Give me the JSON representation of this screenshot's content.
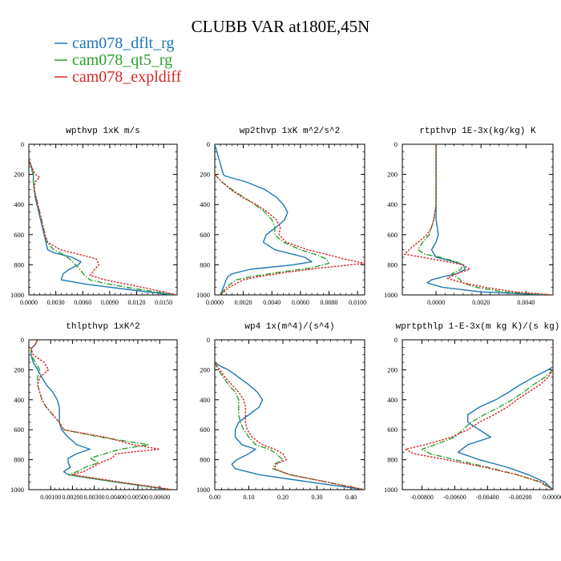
{
  "title": "CLUBB VAR at180E,45N",
  "legend": [
    {
      "label": "cam078_dflt_rg",
      "color": "#1f77b4",
      "dash": "solid"
    },
    {
      "label": "cam078_qt5_rg",
      "color": "#2ca02c",
      "dash": "dashdot"
    },
    {
      "label": "cam078_expldiff",
      "color": "#d62728",
      "dash": "dotted"
    }
  ],
  "chart_data": [
    {
      "type": "line",
      "title": "wpthvp   1xK m/s",
      "xlim": [
        0,
        0.0165
      ],
      "ylim": [
        1000,
        0
      ],
      "y_reversed": true,
      "xticks": [
        0,
        0.003,
        0.006,
        0.009,
        0.012,
        0.015
      ],
      "xticklabels": [
        "0.0000",
        "0.0030",
        "0.0060",
        "0.0090",
        "0.0120",
        "0.0150"
      ],
      "yticks": [
        0,
        200,
        400,
        600,
        800,
        1000
      ],
      "series": [
        {
          "y": [
            100,
            150,
            200,
            250,
            300,
            350,
            400,
            450,
            500,
            550,
            600,
            650,
            700,
            720,
            750,
            780,
            800,
            830,
            860,
            900,
            930,
            960,
            1000
          ],
          "x": [
            0,
            0.0003,
            0.0005,
            0.0005,
            0.0006,
            0.0007,
            0.0009,
            0.0011,
            0.0013,
            0.0015,
            0.0017,
            0.0019,
            0.0021,
            0.0028,
            0.0048,
            0.0058,
            0.0055,
            0.0045,
            0.0038,
            0.0036,
            0.0065,
            0.0105,
            0.016
          ]
        },
        {
          "y": [
            100,
            150,
            200,
            250,
            300,
            350,
            400,
            450,
            500,
            550,
            600,
            650,
            700,
            730,
            760,
            800,
            840,
            870,
            900,
            930,
            960,
            1000
          ],
          "x": [
            0,
            0.0002,
            0.0005,
            0.0005,
            0.0006,
            0.0008,
            0.001,
            0.0012,
            0.0014,
            0.0016,
            0.0018,
            0.002,
            0.0028,
            0.0038,
            0.0045,
            0.0052,
            0.0058,
            0.0062,
            0.0068,
            0.009,
            0.012,
            0.0165
          ]
        },
        {
          "y": [
            100,
            150,
            200,
            220,
            250,
            300,
            350,
            400,
            450,
            500,
            550,
            600,
            650,
            700,
            730,
            760,
            800,
            840,
            870,
            900,
            930,
            960,
            1000
          ],
          "x": [
            0,
            0.0003,
            0.0007,
            0.0012,
            0.0007,
            0.0006,
            0.0008,
            0.001,
            0.0012,
            0.0014,
            0.0016,
            0.0018,
            0.0021,
            0.0035,
            0.0055,
            0.0075,
            0.0078,
            0.0072,
            0.0068,
            0.0085,
            0.011,
            0.0135,
            0.0165
          ]
        }
      ]
    },
    {
      "type": "line",
      "title": "wp2thvp   1xK m^2/s^2",
      "xlim": [
        0,
        0.0105
      ],
      "ylim": [
        1000,
        0
      ],
      "y_reversed": true,
      "xticks": [
        0,
        0.002,
        0.004,
        0.006,
        0.008,
        0.01
      ],
      "xticklabels": [
        "0.0000",
        "0.0020",
        "0.0040",
        "0.0060",
        "0.0080",
        "0.0100"
      ],
      "yticks": [
        0,
        200,
        400,
        600,
        800,
        1000
      ],
      "series": [
        {
          "y": [
            0,
            100,
            200,
            210,
            250,
            300,
            350,
            400,
            450,
            500,
            550,
            600,
            650,
            700,
            750,
            780,
            800,
            830,
            860,
            880,
            900,
            950,
            1000
          ],
          "x": [
            0,
            0.0003,
            0.0006,
            0.0007,
            0.0022,
            0.0035,
            0.0043,
            0.0048,
            0.0051,
            0.0049,
            0.0043,
            0.0036,
            0.0034,
            0.0042,
            0.0063,
            0.0068,
            0.0055,
            0.0025,
            0.0012,
            0.0009,
            0.0008,
            0.0006,
            0.0004
          ]
        },
        {
          "y": [
            200,
            250,
            300,
            350,
            400,
            450,
            500,
            550,
            600,
            650,
            700,
            730,
            760,
            790,
            820,
            850,
            880,
            900,
            950,
            1000
          ],
          "x": [
            0,
            0.0005,
            0.0012,
            0.002,
            0.0028,
            0.0035,
            0.004,
            0.0042,
            0.0042,
            0.0048,
            0.006,
            0.007,
            0.0078,
            0.008,
            0.0068,
            0.0045,
            0.0025,
            0.0015,
            0.0008,
            0.0004
          ]
        },
        {
          "y": [
            200,
            250,
            300,
            350,
            400,
            450,
            500,
            550,
            600,
            650,
            700,
            730,
            760,
            790,
            820,
            850,
            880,
            900,
            950,
            1000
          ],
          "x": [
            0,
            0.0005,
            0.0011,
            0.0019,
            0.0029,
            0.0037,
            0.0043,
            0.0046,
            0.0045,
            0.005,
            0.0065,
            0.0078,
            0.009,
            0.0105,
            0.0075,
            0.005,
            0.003,
            0.002,
            0.001,
            0.0004
          ]
        }
      ]
    },
    {
      "type": "line",
      "title": "rtpthvp   1E-3x(kg/kg) K",
      "xlim": [
        -0.0015,
        0.0052
      ],
      "ylim": [
        1000,
        0
      ],
      "y_reversed": true,
      "xticks": [
        0,
        0.002,
        0.004
      ],
      "xticklabels": [
        "0.0000",
        "0.0020",
        "0.0040"
      ],
      "yticks": [
        0,
        200,
        400,
        600,
        800,
        1000
      ],
      "series": [
        {
          "y": [
            0,
            100,
            200,
            300,
            400,
            500,
            600,
            650,
            700,
            750,
            780,
            800,
            830,
            860,
            880,
            900,
            920,
            950,
            980,
            1000
          ],
          "x": [
            0,
            0,
            0,
            0,
            0,
            0,
            0.0001,
            0,
            -0.0002,
            0,
            0.0008,
            0.0012,
            0.0013,
            0.0009,
            0.0003,
            -0.0002,
            -0.0004,
            0.0003,
            0.002,
            0.005
          ]
        },
        {
          "y": [
            0,
            100,
            200,
            300,
            400,
            500,
            550,
            600,
            650,
            700,
            730,
            750,
            780,
            800,
            830,
            860,
            890,
            920,
            950,
            980,
            1000
          ],
          "x": [
            0,
            0,
            0,
            0,
            0,
            -0.0001,
            -0.0002,
            -0.0003,
            -0.0006,
            -0.0008,
            -0.0005,
            0.0002,
            0.0009,
            0.0012,
            0.0011,
            0.0007,
            0.001,
            0.0012,
            0.0018,
            0.003,
            0.0052
          ]
        },
        {
          "y": [
            0,
            100,
            200,
            300,
            400,
            500,
            550,
            600,
            650,
            700,
            730,
            750,
            780,
            800,
            830,
            860,
            890,
            920,
            950,
            980,
            1000
          ],
          "x": [
            0,
            0,
            0,
            0,
            0,
            -0.0001,
            -0.0002,
            -0.0004,
            -0.0008,
            -0.0012,
            -0.0014,
            -0.0006,
            0.0005,
            0.0012,
            0.0015,
            0.0009,
            0.0005,
            0.0012,
            0.0022,
            0.0035,
            0.0052
          ]
        }
      ]
    },
    {
      "type": "line",
      "title": "thlpthvp   1xK^2",
      "xlim": [
        0,
        0.0068
      ],
      "ylim": [
        1000,
        0
      ],
      "y_reversed": true,
      "xticks": [
        0.001,
        0.002,
        0.003,
        0.004,
        0.005,
        0.006
      ],
      "xticklabels": [
        "0.00100",
        "0.00200",
        "0.00300",
        "0.00400",
        "0.00500",
        "0.00600"
      ],
      "yticks": [
        0,
        200,
        400,
        600,
        800,
        1000
      ],
      "series": [
        {
          "y": [
            0,
            30,
            60,
            100,
            150,
            200,
            250,
            300,
            350,
            400,
            450,
            500,
            550,
            600,
            650,
            700,
            730,
            760,
            790,
            820,
            850,
            880,
            900,
            950,
            1000
          ],
          "x": [
            0.0004,
            0.0003,
            0.0001,
            0.0001,
            0.0002,
            0.0004,
            0.0006,
            0.0008,
            0.0011,
            0.0013,
            0.0014,
            0.0014,
            0.0014,
            0.0015,
            0.0018,
            0.0022,
            0.0028,
            0.0022,
            0.0018,
            0.0018,
            0.0019,
            0.0016,
            0.0018,
            0.004,
            0.0065
          ]
        },
        {
          "y": [
            0,
            30,
            60,
            100,
            150,
            200,
            250,
            300,
            350,
            400,
            450,
            500,
            550,
            600,
            650,
            700,
            730,
            760,
            790,
            820,
            850,
            880,
            900,
            950,
            1000
          ],
          "x": [
            0.0004,
            0.0003,
            0.0001,
            0.0001,
            0.0003,
            0.0005,
            0.0004,
            0.0004,
            0.0005,
            0.0006,
            0.0008,
            0.0011,
            0.0014,
            0.0016,
            0.0033,
            0.0055,
            0.0042,
            0.0035,
            0.0028,
            0.0032,
            0.0026,
            0.0022,
            0.0018,
            0.004,
            0.0065
          ]
        },
        {
          "y": [
            0,
            30,
            60,
            100,
            150,
            200,
            250,
            300,
            350,
            400,
            450,
            500,
            550,
            600,
            650,
            700,
            730,
            760,
            790,
            820,
            850,
            880,
            900,
            950,
            1000
          ],
          "x": [
            0.0004,
            0.0003,
            0.0001,
            0.0002,
            0.0007,
            0.0009,
            0.0005,
            0.0004,
            0.0005,
            0.0006,
            0.0008,
            0.0011,
            0.0014,
            0.0016,
            0.0035,
            0.0048,
            0.006,
            0.004,
            0.0038,
            0.0033,
            0.0029,
            0.0025,
            0.002,
            0.0042,
            0.0066
          ]
        }
      ]
    },
    {
      "type": "line",
      "title": "wp4   1x(m^4)/(s^4)",
      "xlim": [
        0,
        0.44
      ],
      "ylim": [
        1000,
        0
      ],
      "y_reversed": true,
      "xticks": [
        0,
        0.1,
        0.2,
        0.3,
        0.4
      ],
      "xticklabels": [
        "0.00",
        "0.10",
        "0.20",
        "0.30",
        "0.40"
      ],
      "yticks": [
        0,
        200,
        400,
        600,
        800,
        1000
      ],
      "series": [
        {
          "y": [
            150,
            180,
            200,
            250,
            300,
            350,
            400,
            450,
            500,
            550,
            600,
            650,
            700,
            730,
            760,
            800,
            830,
            860,
            900,
            950,
            1000
          ],
          "x": [
            0,
            0.02,
            0.04,
            0.07,
            0.1,
            0.125,
            0.14,
            0.13,
            0.1,
            0.07,
            0.06,
            0.06,
            0.08,
            0.12,
            0.1,
            0.065,
            0.05,
            0.06,
            0.13,
            0.28,
            0.44
          ]
        },
        {
          "y": [
            150,
            200,
            250,
            300,
            350,
            400,
            450,
            500,
            550,
            600,
            650,
            700,
            730,
            760,
            800,
            830,
            860,
            900,
            950,
            1000
          ],
          "x": [
            0,
            0.01,
            0.025,
            0.04,
            0.06,
            0.07,
            0.07,
            0.07,
            0.075,
            0.085,
            0.1,
            0.12,
            0.16,
            0.18,
            0.2,
            0.175,
            0.17,
            0.22,
            0.33,
            0.44
          ]
        },
        {
          "y": [
            150,
            200,
            250,
            300,
            350,
            400,
            450,
            500,
            550,
            600,
            650,
            700,
            730,
            760,
            800,
            830,
            860,
            900,
            950,
            1000
          ],
          "x": [
            0,
            0.015,
            0.03,
            0.05,
            0.07,
            0.085,
            0.09,
            0.09,
            0.09,
            0.095,
            0.11,
            0.14,
            0.175,
            0.2,
            0.21,
            0.18,
            0.175,
            0.22,
            0.33,
            0.44
          ]
        }
      ]
    },
    {
      "type": "line",
      "title": "wprtpthlp   1-E-3x(m kg K)/(s kg)",
      "xlim": [
        -0.0092,
        0
      ],
      "ylim": [
        1000,
        0
      ],
      "y_reversed": true,
      "xticks": [
        -0.008,
        -0.006,
        -0.004,
        -0.002,
        0
      ],
      "xticklabels": [
        "-0.00800",
        "-0.00600",
        "-0.00400",
        "-0.00200",
        "0.00000"
      ],
      "yticks": [
        0,
        200,
        400,
        600,
        800,
        1000
      ],
      "series": [
        {
          "y": [
            0,
            100,
            180,
            200,
            250,
            300,
            350,
            400,
            450,
            500,
            550,
            600,
            650,
            700,
            750,
            800,
            850,
            900,
            950,
            1000
          ],
          "x": [
            0,
            0,
            0,
            -0.0003,
            -0.0012,
            -0.002,
            -0.0027,
            -0.0035,
            -0.0045,
            -0.0052,
            -0.0052,
            -0.0045,
            -0.0038,
            -0.0052,
            -0.0058,
            -0.0045,
            -0.0028,
            -0.0015,
            -0.0005,
            0
          ]
        },
        {
          "y": [
            0,
            100,
            200,
            250,
            300,
            350,
            400,
            450,
            500,
            550,
            600,
            650,
            700,
            730,
            760,
            800,
            850,
            900,
            950,
            1000
          ],
          "x": [
            0,
            0,
            0,
            -0.0005,
            -0.0012,
            -0.0018,
            -0.0025,
            -0.0033,
            -0.0042,
            -0.005,
            -0.0055,
            -0.006,
            -0.0072,
            -0.008,
            -0.0075,
            -0.006,
            -0.004,
            -0.0022,
            -0.0008,
            0
          ]
        },
        {
          "y": [
            0,
            100,
            200,
            250,
            300,
            350,
            400,
            450,
            500,
            550,
            600,
            650,
            700,
            730,
            760,
            800,
            850,
            900,
            950,
            1000
          ],
          "x": [
            0,
            0,
            0,
            -0.0003,
            -0.0008,
            -0.0015,
            -0.0022,
            -0.0028,
            -0.0036,
            -0.0045,
            -0.0052,
            -0.0062,
            -0.0078,
            -0.009,
            -0.0085,
            -0.0065,
            -0.0042,
            -0.0022,
            -0.0007,
            0
          ]
        }
      ]
    }
  ]
}
